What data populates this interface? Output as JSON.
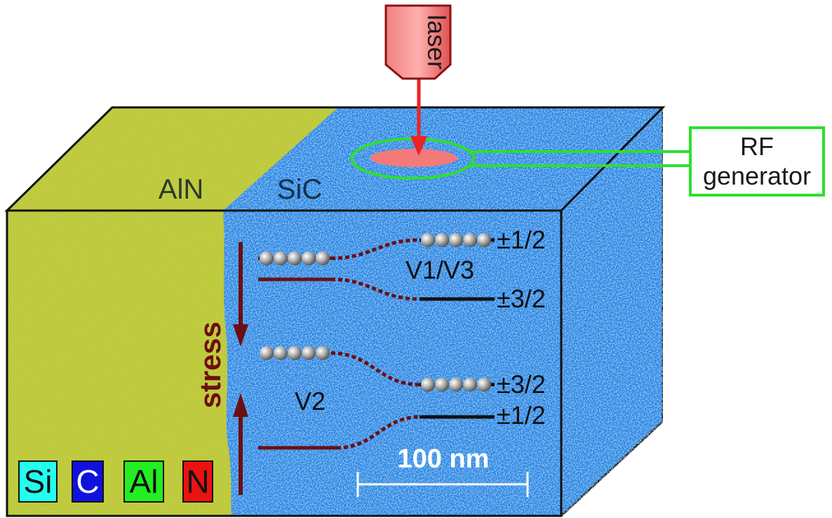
{
  "materials": {
    "left": "AlN",
    "right": "SiC"
  },
  "laser": {
    "label": "laser"
  },
  "rf": {
    "line1": "RF",
    "line2": "generator"
  },
  "stress": {
    "label": "stress"
  },
  "defects": {
    "v1v3": {
      "label": "V1/V3",
      "upper": "±1/2",
      "lower": "±3/2"
    },
    "v2": {
      "label": "V2",
      "upper": "±3/2",
      "lower": "±1/2"
    }
  },
  "scale_bar": {
    "label": "100 nm"
  },
  "legend": [
    {
      "symbol": "Si",
      "color": "#22ffee",
      "text_color": "#111111"
    },
    {
      "symbol": "C",
      "color": "#1111dd",
      "text_color": "#ffffff"
    },
    {
      "symbol": "Al",
      "color": "#22ee22",
      "text_color": "#111111"
    },
    {
      "symbol": "N",
      "color": "#ee1111",
      "text_color": "#111111"
    }
  ],
  "colors": {
    "sic_blue": "#1d86e4",
    "aln_yellow": "#b4cc3a",
    "stress_arrow": "#6b0f12",
    "laser_red": "#ee2222",
    "rf_green": "#2de02d"
  }
}
